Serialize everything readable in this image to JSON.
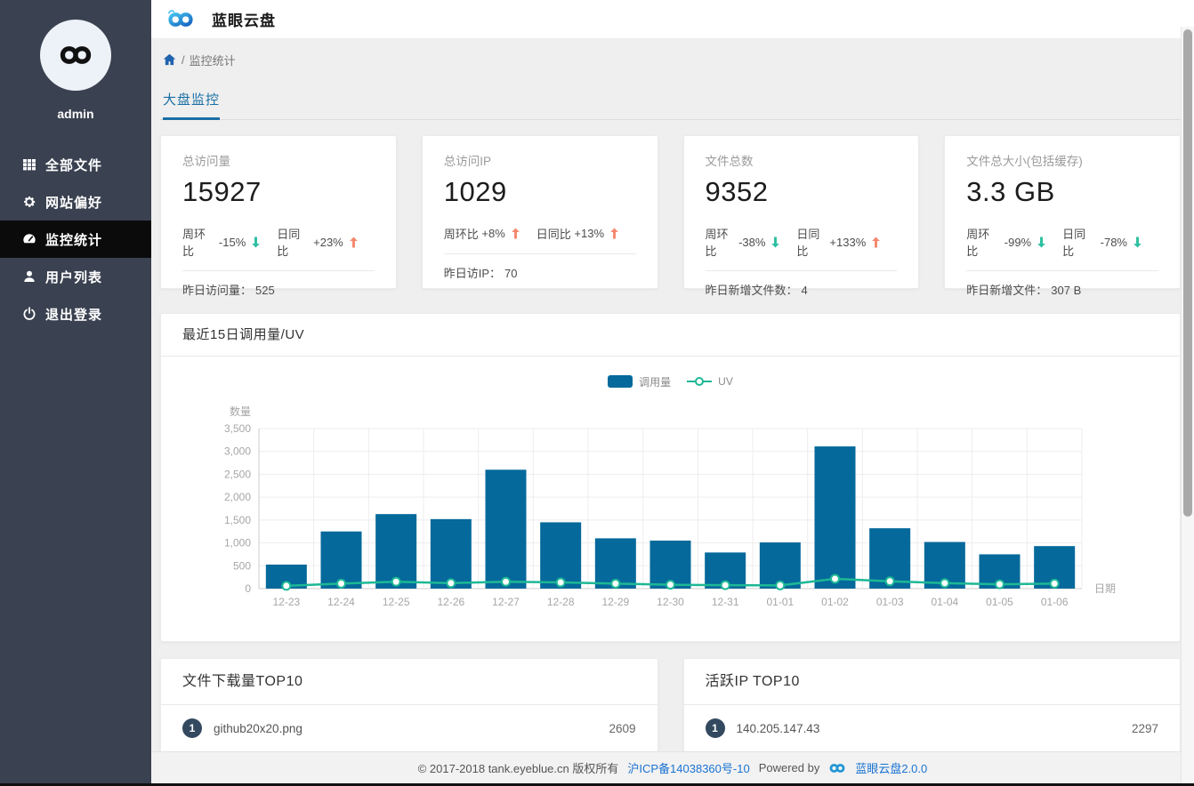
{
  "colors": {
    "sidebar-bg": "#3a4150",
    "active-bg": "#0b0b0b",
    "avatar-bg": "#edf2f9",
    "accent-blue": "#1a6fa5",
    "link-blue": "#1a73d1",
    "bar-color": "#05699b",
    "line-color": "#1db895",
    "up-color": "#f5876d",
    "down-color": "#2cbfa1",
    "badge-bg": "#334960",
    "home-icon-blue": "#2063ae"
  },
  "sidebar": {
    "username": "admin",
    "items": [
      {
        "label": "全部文件",
        "icon": "grid"
      },
      {
        "label": "网站偏好",
        "icon": "gear"
      },
      {
        "label": "监控统计",
        "icon": "dashboard",
        "active": true
      },
      {
        "label": "用户列表",
        "icon": "user"
      },
      {
        "label": "退出登录",
        "icon": "power"
      }
    ]
  },
  "header": {
    "app_title": "蓝眼云盘"
  },
  "breadcrumb": {
    "separator": "/",
    "current": "监控统计"
  },
  "tabs": {
    "active": "大盘监控"
  },
  "stat_cards": [
    {
      "label": "总访问量",
      "value": "15927",
      "week_label": "周环比",
      "week_value": "-15%",
      "week_dir": "down",
      "day_label": "日同比",
      "day_value": "+23%",
      "day_dir": "up",
      "foot_label": "昨日访问量：",
      "foot_value": "525"
    },
    {
      "label": "总访问IP",
      "value": "1029",
      "week_label": "周环比",
      "week_value": "+8%",
      "week_dir": "up",
      "day_label": "日同比",
      "day_value": "+13%",
      "day_dir": "up",
      "foot_label": "昨日访IP：",
      "foot_value": "70"
    },
    {
      "label": "文件总数",
      "value": "9352",
      "week_label": "周环比",
      "week_value": "-38%",
      "week_dir": "down",
      "day_label": "日同比",
      "day_value": "+133%",
      "day_dir": "up",
      "foot_label": "昨日新增文件数：",
      "foot_value": "4"
    },
    {
      "label": "文件总大小(包括缓存)",
      "value": "3.3 GB",
      "week_label": "周环比",
      "week_value": "-99%",
      "week_dir": "down",
      "day_label": "日同比",
      "day_value": "-78%",
      "day_dir": "down",
      "foot_label": "昨日新增文件：",
      "foot_value": "307 B"
    }
  ],
  "chart_card": {
    "title": "最近15日调用量/UV"
  },
  "chart_data": {
    "type": "bar",
    "title": "最近15日调用量/UV",
    "categories": [
      "12-23",
      "12-24",
      "12-25",
      "12-26",
      "12-27",
      "12-28",
      "12-29",
      "12-30",
      "12-31",
      "01-01",
      "01-02",
      "01-03",
      "01-04",
      "01-05",
      "01-06"
    ],
    "series": [
      {
        "name": "调用量",
        "type": "bar",
        "color": "#05699b",
        "values": [
          525,
          1250,
          1630,
          1520,
          2600,
          1450,
          1100,
          1050,
          790,
          1010,
          3110,
          1320,
          1020,
          750,
          930
        ]
      },
      {
        "name": "UV",
        "type": "line",
        "color": "#1db895",
        "values": [
          60,
          110,
          150,
          120,
          150,
          135,
          110,
          85,
          75,
          70,
          215,
          160,
          120,
          95,
          110
        ]
      }
    ],
    "xlabel": "日期",
    "ylabel": "数量",
    "ylim": [
      0,
      3500
    ],
    "yticks": [
      0,
      500,
      1000,
      1500,
      2000,
      2500,
      3000,
      3500
    ],
    "grid": true,
    "legend_position": "top-center"
  },
  "top_lists": [
    {
      "title": "文件下载量TOP10",
      "items": [
        {
          "rank": "1",
          "name": "github20x20.png",
          "count": "2609"
        }
      ]
    },
    {
      "title": "活跃IP TOP10",
      "items": [
        {
          "rank": "1",
          "name": "140.205.147.43",
          "count": "2297"
        }
      ]
    }
  ],
  "footer": {
    "copyright": "© 2017-2018 tank.eyeblue.cn 版权所有",
    "icp": "沪ICP备14038360号-10",
    "powered_by": "Powered by",
    "product": "蓝眼云盘2.0.0"
  }
}
